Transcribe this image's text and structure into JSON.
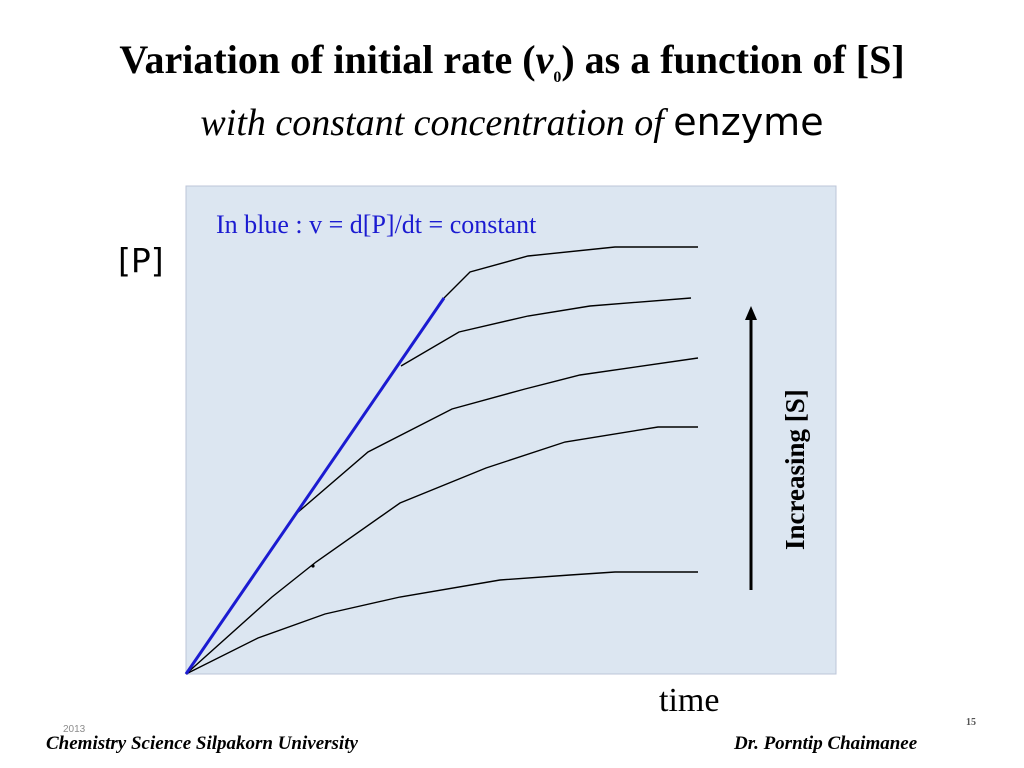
{
  "title": {
    "line1_prefix": "Variation of initial rate (",
    "line1_var": "v",
    "line1_sub": "0",
    "line1_suffix": ") as a function of [S]",
    "line2_text": "with constant concentration of ",
    "line2_enzyme": "enzyme"
  },
  "diagram": {
    "y_label": "[P]",
    "x_label": "time",
    "annotation": "In blue :  v = d[P]/dt  = constant",
    "arrow_label": "Increasing [S]",
    "panel_color": "#dce6f1",
    "panel_border": "#bcc6d8",
    "curve_color": "#000000",
    "tangent_color": "#1b1bd1",
    "annotation_color": "#1b1bd1",
    "curve_count": 5
  },
  "footer": {
    "left": "Chemistry   Science   Silpakorn University",
    "right": "Dr. Porntip  Chaimanee",
    "year": "2013",
    "page": "15"
  }
}
